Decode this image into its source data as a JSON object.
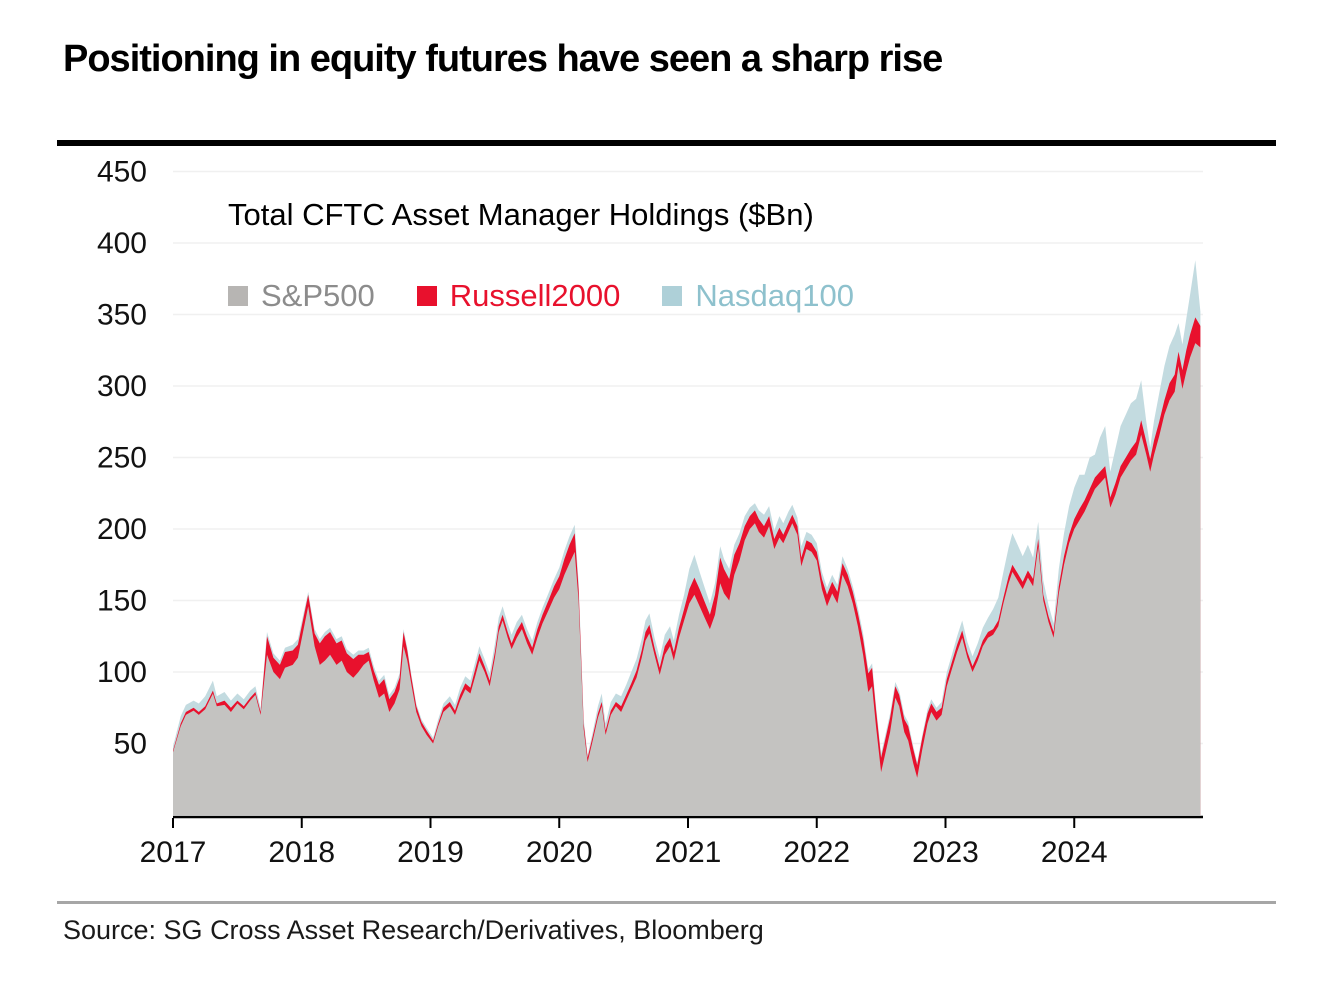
{
  "header": {
    "title": "Positioning in equity futures have seen a sharp rise"
  },
  "chart": {
    "inner_title": "Total CFTC Asset Manager Holdings ($Bn)",
    "legend": [
      {
        "label": "S&P500",
        "swatch_color": "#b7b5b3",
        "text_color": "#8c8c8c"
      },
      {
        "label": "Russell2000",
        "swatch_color": "#e8112d",
        "text_color": "#e8112d"
      },
      {
        "label": "Nasdaq100",
        "swatch_color": "#aed0d8",
        "text_color": "#8ec1cd"
      }
    ]
  },
  "chart_data": {
    "type": "area",
    "stacked": true,
    "title": "Total CFTC Asset Manager Holdings ($Bn)",
    "unit": "$Bn",
    "grid": "horizontal-light",
    "legend_position": "top-left-inside",
    "x_axis": {
      "ticks": [
        2017,
        2018,
        2019,
        2020,
        2021,
        2022,
        2023,
        2024
      ],
      "range": [
        2017,
        2025
      ]
    },
    "y_axis": {
      "ticks": [
        50,
        100,
        150,
        200,
        250,
        300,
        350,
        400,
        450
      ],
      "range": [
        0,
        465
      ]
    },
    "x": [
      2017.0,
      2017.06,
      2017.1,
      2017.16,
      2017.2,
      2017.25,
      2017.31,
      2017.34,
      2017.4,
      2017.45,
      2017.5,
      2017.55,
      2017.6,
      2017.64,
      2017.68,
      2017.73,
      2017.78,
      2017.83,
      2017.87,
      2017.93,
      2017.97,
      2018.05,
      2018.1,
      2018.14,
      2018.18,
      2018.22,
      2018.27,
      2018.31,
      2018.35,
      2018.4,
      2018.44,
      2018.48,
      2018.52,
      2018.56,
      2018.6,
      2018.64,
      2018.68,
      2018.72,
      2018.76,
      2018.79,
      2018.82,
      2018.85,
      2018.89,
      2018.93,
      2018.97,
      2019.02,
      2019.06,
      2019.1,
      2019.15,
      2019.19,
      2019.23,
      2019.27,
      2019.31,
      2019.35,
      2019.38,
      2019.42,
      2019.46,
      2019.5,
      2019.53,
      2019.56,
      2019.6,
      2019.63,
      2019.67,
      2019.71,
      2019.75,
      2019.79,
      2019.83,
      2019.87,
      2019.92,
      2019.96,
      2020.0,
      2020.04,
      2020.08,
      2020.12,
      2020.15,
      2020.19,
      2020.22,
      2020.26,
      2020.3,
      2020.33,
      2020.36,
      2020.4,
      2020.44,
      2020.48,
      2020.52,
      2020.56,
      2020.6,
      2020.64,
      2020.67,
      2020.7,
      2020.74,
      2020.78,
      2020.82,
      2020.86,
      2020.89,
      2020.93,
      2020.97,
      2021.01,
      2021.05,
      2021.09,
      2021.13,
      2021.17,
      2021.21,
      2021.25,
      2021.28,
      2021.32,
      2021.36,
      2021.4,
      2021.44,
      2021.48,
      2021.52,
      2021.55,
      2021.59,
      2021.63,
      2021.67,
      2021.71,
      2021.74,
      2021.78,
      2021.81,
      2021.85,
      2021.88,
      2021.92,
      2021.96,
      2022.0,
      2022.04,
      2022.08,
      2022.12,
      2022.16,
      2022.2,
      2022.24,
      2022.28,
      2022.32,
      2022.36,
      2022.4,
      2022.43,
      2022.46,
      2022.5,
      2022.53,
      2022.57,
      2022.61,
      2022.64,
      2022.68,
      2022.71,
      2022.75,
      2022.78,
      2022.82,
      2022.86,
      2022.89,
      2022.93,
      2022.97,
      2023.01,
      2023.05,
      2023.09,
      2023.13,
      2023.17,
      2023.21,
      2023.25,
      2023.29,
      2023.33,
      2023.37,
      2023.41,
      2023.45,
      2023.49,
      2023.52,
      2023.56,
      2023.6,
      2023.64,
      2023.68,
      2023.72,
      2023.76,
      2023.8,
      2023.84,
      2023.88,
      2023.92,
      2023.96,
      2024.0,
      2024.04,
      2024.08,
      2024.12,
      2024.16,
      2024.2,
      2024.24,
      2024.28,
      2024.32,
      2024.36,
      2024.4,
      2024.44,
      2024.48,
      2024.52,
      2024.56,
      2024.59,
      2024.62,
      2024.66,
      2024.7,
      2024.74,
      2024.78,
      2024.81,
      2024.84,
      2024.87,
      2024.9,
      2024.94,
      2024.98
    ],
    "series": [
      {
        "name": "S&P500",
        "color": "#c4c3c1",
        "values": [
          44,
          62,
          70,
          73,
          70,
          74,
          85,
          76,
          77,
          72,
          78,
          74,
          80,
          84,
          70,
          112,
          100,
          95,
          103,
          105,
          110,
          146,
          118,
          105,
          108,
          112,
          105,
          108,
          100,
          96,
          100,
          105,
          108,
          94,
          82,
          85,
          72,
          78,
          88,
          118,
          108,
          92,
          72,
          62,
          56,
          50,
          62,
          72,
          76,
          70,
          80,
          88,
          85,
          98,
          108,
          100,
          90,
          110,
          128,
          136,
          124,
          116,
          124,
          130,
          120,
          112,
          124,
          134,
          144,
          152,
          158,
          168,
          176,
          184,
          150,
          60,
          37,
          52,
          68,
          76,
          56,
          70,
          76,
          72,
          80,
          88,
          96,
          110,
          122,
          127,
          112,
          98,
          112,
          118,
          108,
          124,
          136,
          148,
          154,
          146,
          138,
          130,
          140,
          162,
          155,
          150,
          168,
          178,
          192,
          200,
          204,
          198,
          194,
          202,
          186,
          194,
          190,
          198,
          204,
          196,
          174,
          186,
          184,
          178,
          158,
          146,
          155,
          148,
          168,
          160,
          148,
          132,
          112,
          86,
          90,
          62,
          30,
          42,
          58,
          82,
          76,
          58,
          52,
          36,
          26,
          46,
          64,
          72,
          66,
          70,
          90,
          102,
          114,
          124,
          110,
          100,
          108,
          118,
          124,
          126,
          132,
          148,
          162,
          170,
          164,
          158,
          166,
          160,
          188,
          150,
          135,
          124,
          155,
          175,
          190,
          200,
          206,
          212,
          220,
          228,
          232,
          236,
          215,
          224,
          236,
          242,
          248,
          252,
          266,
          252,
          240,
          252,
          265,
          280,
          290,
          296,
          314,
          298,
          310,
          320,
          330,
          327
        ]
      },
      {
        "name": "Russell2000",
        "color": "#e8112d",
        "values": [
          1,
          2,
          2,
          2,
          2,
          2,
          2,
          2,
          3,
          3,
          2,
          2,
          2,
          2,
          2,
          13,
          10,
          10,
          11,
          10,
          9,
          8,
          9,
          15,
          17,
          16,
          15,
          14,
          13,
          13,
          12,
          7,
          6,
          7,
          9,
          10,
          9,
          8,
          8,
          10,
          7,
          5,
          4,
          3,
          3,
          2,
          2,
          3,
          3,
          3,
          4,
          4,
          4,
          5,
          5,
          4,
          4,
          4,
          4,
          4,
          4,
          4,
          5,
          5,
          5,
          5,
          6,
          6,
          7,
          8,
          9,
          11,
          13,
          13,
          8,
          4,
          3,
          3,
          3,
          3,
          3,
          3,
          3,
          4,
          4,
          4,
          5,
          5,
          6,
          6,
          5,
          5,
          6,
          6,
          6,
          7,
          8,
          10,
          12,
          12,
          11,
          10,
          14,
          18,
          17,
          15,
          14,
          12,
          10,
          9,
          9,
          9,
          8,
          7,
          7,
          7,
          6,
          6,
          6,
          6,
          6,
          6,
          6,
          6,
          7,
          8,
          8,
          8,
          8,
          8,
          8,
          9,
          11,
          13,
          13,
          12,
          10,
          10,
          10,
          8,
          8,
          9,
          10,
          10,
          9,
          8,
          7,
          6,
          6,
          5,
          5,
          5,
          5,
          5,
          4,
          4,
          4,
          4,
          4,
          4,
          4,
          4,
          5,
          5,
          5,
          5,
          5,
          5,
          5,
          4,
          4,
          4,
          5,
          6,
          6,
          7,
          8,
          8,
          8,
          8,
          8,
          8,
          7,
          8,
          8,
          8,
          8,
          9,
          10,
          9,
          9,
          10,
          10,
          10,
          12,
          12,
          10,
          13,
          15,
          16,
          18,
          15
        ]
      },
      {
        "name": "Nasdaq100",
        "color": "#c3dbe0",
        "values": [
          3,
          5,
          5,
          5,
          6,
          7,
          7,
          5,
          6,
          5,
          5,
          5,
          5,
          4,
          3,
          3,
          3,
          3,
          3,
          4,
          4,
          2,
          3,
          3,
          3,
          3,
          3,
          3,
          3,
          3,
          3,
          3,
          3,
          3,
          3,
          3,
          3,
          3,
          3,
          2,
          2,
          2,
          2,
          2,
          2,
          2,
          3,
          3,
          4,
          4,
          5,
          5,
          5,
          5,
          5,
          5,
          5,
          6,
          6,
          6,
          6,
          6,
          6,
          5,
          5,
          5,
          5,
          5,
          5,
          5,
          6,
          6,
          6,
          6,
          5,
          3,
          2,
          3,
          5,
          6,
          5,
          6,
          6,
          7,
          7,
          8,
          8,
          8,
          8,
          8,
          7,
          7,
          8,
          8,
          8,
          9,
          10,
          14,
          16,
          12,
          10,
          8,
          8,
          8,
          7,
          7,
          7,
          7,
          7,
          6,
          5,
          6,
          8,
          7,
          6,
          8,
          8,
          8,
          7,
          6,
          8,
          6,
          6,
          6,
          5,
          5,
          5,
          5,
          5,
          4,
          4,
          4,
          4,
          3,
          3,
          3,
          3,
          3,
          3,
          3,
          3,
          3,
          3,
          2,
          2,
          2,
          3,
          3,
          3,
          4,
          5,
          5,
          6,
          7,
          7,
          7,
          8,
          9,
          10,
          14,
          16,
          18,
          20,
          22,
          20,
          18,
          18,
          15,
          12,
          10,
          8,
          6,
          12,
          16,
          20,
          22,
          24,
          18,
          22,
          16,
          24,
          28,
          18,
          24,
          28,
          30,
          32,
          30,
          28,
          14,
          8,
          14,
          20,
          24,
          26,
          28,
          20,
          18,
          22,
          28,
          40,
          10
        ]
      }
    ]
  },
  "footer": {
    "source": "Source: SG Cross Asset Research/Derivatives, Bloomberg"
  }
}
